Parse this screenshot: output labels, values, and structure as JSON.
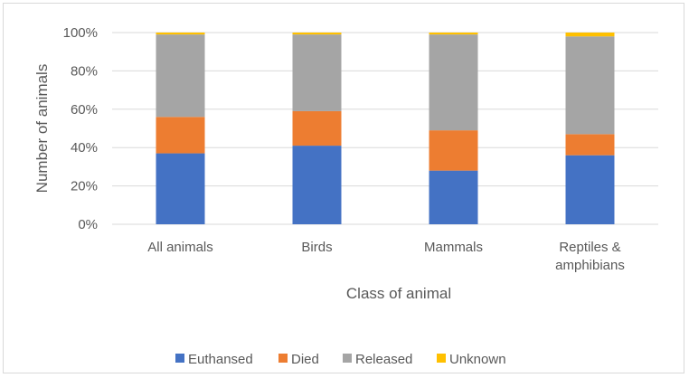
{
  "chart_data": {
    "type": "bar",
    "stacked": true,
    "percent_stacked": true,
    "title": "",
    "xlabel": "Class of animal",
    "ylabel": "Number of animals",
    "ylim": [
      0,
      100
    ],
    "y_ticks": [
      "0%",
      "20%",
      "40%",
      "60%",
      "80%",
      "100%"
    ],
    "y_tick_values": [
      0,
      20,
      40,
      60,
      80,
      100
    ],
    "grid": true,
    "legend_position": "bottom",
    "categories": [
      [
        "All animals"
      ],
      [
        "Birds"
      ],
      [
        "Mammals"
      ],
      [
        "Reptiles &",
        "amphibians"
      ]
    ],
    "series": [
      {
        "name": "Euthansed",
        "color": "#4472C4",
        "values": [
          37,
          41,
          28,
          36
        ]
      },
      {
        "name": "Died",
        "color": "#ED7D31",
        "values": [
          19,
          18,
          21,
          11
        ]
      },
      {
        "name": "Released",
        "color": "#A5A5A5",
        "values": [
          43,
          40,
          50,
          51
        ]
      },
      {
        "name": "Unknown",
        "color": "#FFC000",
        "values": [
          1,
          1,
          1,
          2
        ]
      }
    ]
  }
}
